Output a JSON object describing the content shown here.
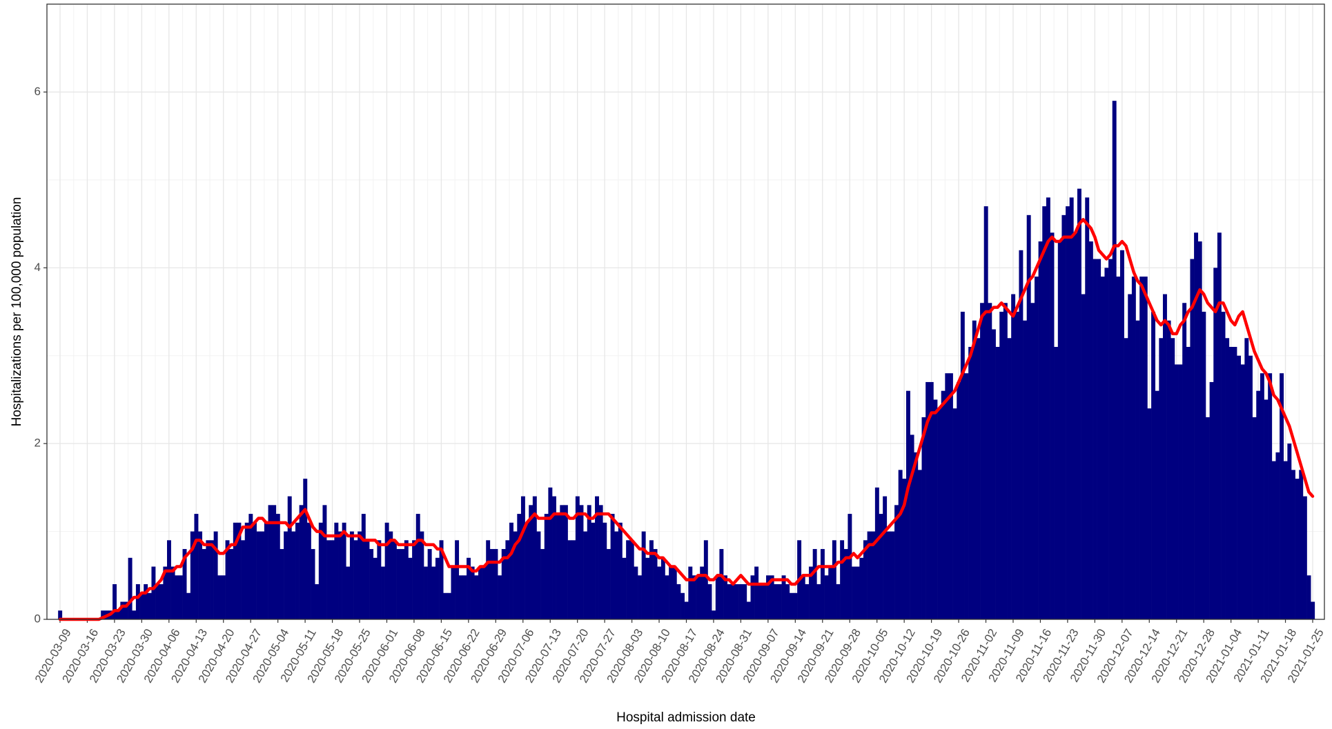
{
  "chart_data": {
    "type": "bar",
    "x_label": "Hospital admission date",
    "y_label": "Hospitalizations per 100,000 population",
    "ylim": [
      0,
      7
    ],
    "yticks": [
      0,
      2,
      4,
      6
    ],
    "minor_yticks": [
      1,
      3,
      5
    ],
    "grid": true,
    "x": [
      "2020-03-09",
      "2020-03-10",
      "2020-03-11",
      "2020-03-12",
      "2020-03-13",
      "2020-03-14",
      "2020-03-15",
      "2020-03-16",
      "2020-03-17",
      "2020-03-18",
      "2020-03-19",
      "2020-03-20",
      "2020-03-21",
      "2020-03-22",
      "2020-03-23",
      "2020-03-24",
      "2020-03-25",
      "2020-03-26",
      "2020-03-27",
      "2020-03-28",
      "2020-03-29",
      "2020-03-30",
      "2020-03-31",
      "2020-04-01",
      "2020-04-02",
      "2020-04-03",
      "2020-04-04",
      "2020-04-05",
      "2020-04-06",
      "2020-04-07",
      "2020-04-08",
      "2020-04-09",
      "2020-04-10",
      "2020-04-11",
      "2020-04-12",
      "2020-04-13",
      "2020-04-14",
      "2020-04-15",
      "2020-04-16",
      "2020-04-17",
      "2020-04-18",
      "2020-04-19",
      "2020-04-20",
      "2020-04-21",
      "2020-04-22",
      "2020-04-23",
      "2020-04-24",
      "2020-04-25",
      "2020-04-26",
      "2020-04-27",
      "2020-04-28",
      "2020-04-29",
      "2020-04-30",
      "2020-05-01",
      "2020-05-02",
      "2020-05-03",
      "2020-05-04",
      "2020-05-05",
      "2020-05-06",
      "2020-05-07",
      "2020-05-08",
      "2020-05-09",
      "2020-05-10",
      "2020-05-11",
      "2020-05-12",
      "2020-05-13",
      "2020-05-14",
      "2020-05-15",
      "2020-05-16",
      "2020-05-17",
      "2020-05-18",
      "2020-05-19",
      "2020-05-20",
      "2020-05-21",
      "2020-05-22",
      "2020-05-23",
      "2020-05-24",
      "2020-05-25",
      "2020-05-26",
      "2020-05-27",
      "2020-05-28",
      "2020-05-29",
      "2020-05-30",
      "2020-05-31",
      "2020-06-01",
      "2020-06-02",
      "2020-06-03",
      "2020-06-04",
      "2020-06-05",
      "2020-06-06",
      "2020-06-07",
      "2020-06-08",
      "2020-06-09",
      "2020-06-10",
      "2020-06-11",
      "2020-06-12",
      "2020-06-13",
      "2020-06-14",
      "2020-06-15",
      "2020-06-16",
      "2020-06-17",
      "2020-06-18",
      "2020-06-19",
      "2020-06-20",
      "2020-06-21",
      "2020-06-22",
      "2020-06-23",
      "2020-06-24",
      "2020-06-25",
      "2020-06-26",
      "2020-06-27",
      "2020-06-28",
      "2020-06-29",
      "2020-06-30",
      "2020-07-01",
      "2020-07-02",
      "2020-07-03",
      "2020-07-04",
      "2020-07-05",
      "2020-07-06",
      "2020-07-07",
      "2020-07-08",
      "2020-07-09",
      "2020-07-10",
      "2020-07-11",
      "2020-07-12",
      "2020-07-13",
      "2020-07-14",
      "2020-07-15",
      "2020-07-16",
      "2020-07-17",
      "2020-07-18",
      "2020-07-19",
      "2020-07-20",
      "2020-07-21",
      "2020-07-22",
      "2020-07-23",
      "2020-07-24",
      "2020-07-25",
      "2020-07-26",
      "2020-07-27",
      "2020-07-28",
      "2020-07-29",
      "2020-07-30",
      "2020-07-31",
      "2020-08-01",
      "2020-08-02",
      "2020-08-03",
      "2020-08-04",
      "2020-08-05",
      "2020-08-06",
      "2020-08-07",
      "2020-08-08",
      "2020-08-09",
      "2020-08-10",
      "2020-08-11",
      "2020-08-12",
      "2020-08-13",
      "2020-08-14",
      "2020-08-15",
      "2020-08-16",
      "2020-08-17",
      "2020-08-18",
      "2020-08-19",
      "2020-08-20",
      "2020-08-21",
      "2020-08-22",
      "2020-08-23",
      "2020-08-24",
      "2020-08-25",
      "2020-08-26",
      "2020-08-27",
      "2020-08-28",
      "2020-08-29",
      "2020-08-30",
      "2020-08-31",
      "2020-09-01",
      "2020-09-02",
      "2020-09-03",
      "2020-09-04",
      "2020-09-05",
      "2020-09-06",
      "2020-09-07",
      "2020-09-08",
      "2020-09-09",
      "2020-09-10",
      "2020-09-11",
      "2020-09-12",
      "2020-09-13",
      "2020-09-14",
      "2020-09-15",
      "2020-09-16",
      "2020-09-17",
      "2020-09-18",
      "2020-09-19",
      "2020-09-20",
      "2020-09-21",
      "2020-09-22",
      "2020-09-23",
      "2020-09-24",
      "2020-09-25",
      "2020-09-26",
      "2020-09-27",
      "2020-09-28",
      "2020-09-29",
      "2020-09-30",
      "2020-10-01",
      "2020-10-02",
      "2020-10-03",
      "2020-10-04",
      "2020-10-05",
      "2020-10-06",
      "2020-10-07",
      "2020-10-08",
      "2020-10-09",
      "2020-10-10",
      "2020-10-11",
      "2020-10-12",
      "2020-10-13",
      "2020-10-14",
      "2020-10-15",
      "2020-10-16",
      "2020-10-17",
      "2020-10-18",
      "2020-10-19",
      "2020-10-20",
      "2020-10-21",
      "2020-10-22",
      "2020-10-23",
      "2020-10-24",
      "2020-10-25",
      "2020-10-26",
      "2020-10-27",
      "2020-10-28",
      "2020-10-29",
      "2020-10-30",
      "2020-10-31",
      "2020-11-01",
      "2020-11-02",
      "2020-11-03",
      "2020-11-04",
      "2020-11-05",
      "2020-11-06",
      "2020-11-07",
      "2020-11-08",
      "2020-11-09",
      "2020-11-10",
      "2020-11-11",
      "2020-11-12",
      "2020-11-13",
      "2020-11-14",
      "2020-11-15",
      "2020-11-16",
      "2020-11-17",
      "2020-11-18",
      "2020-11-19",
      "2020-11-20",
      "2020-11-21",
      "2020-11-22",
      "2020-11-23",
      "2020-11-24",
      "2020-11-25",
      "2020-11-26",
      "2020-11-27",
      "2020-11-28",
      "2020-11-29",
      "2020-11-30",
      "2020-12-01",
      "2020-12-02",
      "2020-12-03",
      "2020-12-04",
      "2020-12-05",
      "2020-12-06",
      "2020-12-07",
      "2020-12-08",
      "2020-12-09",
      "2020-12-10",
      "2020-12-11",
      "2020-12-12",
      "2020-12-13",
      "2020-12-14",
      "2020-12-15",
      "2020-12-16",
      "2020-12-17",
      "2020-12-18",
      "2020-12-19",
      "2020-12-20",
      "2020-12-21",
      "2020-12-22",
      "2020-12-23",
      "2020-12-24",
      "2020-12-25",
      "2020-12-26",
      "2020-12-27",
      "2020-12-28",
      "2020-12-29",
      "2020-12-30",
      "2020-12-31",
      "2021-01-01",
      "2021-01-02",
      "2021-01-03",
      "2021-01-04",
      "2021-01-05",
      "2021-01-06",
      "2021-01-07",
      "2021-01-08",
      "2021-01-09",
      "2021-01-10",
      "2021-01-11",
      "2021-01-12",
      "2021-01-13",
      "2021-01-14",
      "2021-01-15",
      "2021-01-16",
      "2021-01-17",
      "2021-01-18",
      "2021-01-19",
      "2021-01-20",
      "2021-01-21",
      "2021-01-22",
      "2021-01-23",
      "2021-01-24",
      "2021-01-25"
    ],
    "xticks": [
      "2020-03-09",
      "2020-03-16",
      "2020-03-23",
      "2020-03-30",
      "2020-04-06",
      "2020-04-13",
      "2020-04-20",
      "2020-04-27",
      "2020-05-04",
      "2020-05-11",
      "2020-05-18",
      "2020-05-25",
      "2020-06-01",
      "2020-06-08",
      "2020-06-15",
      "2020-06-22",
      "2020-06-29",
      "2020-07-06",
      "2020-07-13",
      "2020-07-20",
      "2020-07-27",
      "2020-08-03",
      "2020-08-10",
      "2020-08-17",
      "2020-08-24",
      "2020-08-31",
      "2020-09-07",
      "2020-09-14",
      "2020-09-21",
      "2020-09-28",
      "2020-10-05",
      "2020-10-12",
      "2020-10-19",
      "2020-10-26",
      "2020-11-02",
      "2020-11-09",
      "2020-11-16",
      "2020-11-23",
      "2020-11-30",
      "2020-12-07",
      "2020-12-14",
      "2020-12-21",
      "2020-12-28",
      "2021-01-04",
      "2021-01-11",
      "2021-01-18",
      "2021-01-25"
    ],
    "series": [
      {
        "type": "bar",
        "color": "#000080",
        "values": [
          0.1,
          0,
          0,
          0,
          0,
          0,
          0,
          0,
          0,
          0,
          0,
          0.1,
          0.1,
          0.1,
          0.4,
          0.1,
          0.2,
          0.2,
          0.7,
          0.1,
          0.4,
          0.3,
          0.4,
          0.3,
          0.6,
          0.4,
          0.4,
          0.6,
          0.9,
          0.6,
          0.5,
          0.5,
          0.8,
          0.3,
          1.0,
          1.2,
          1.0,
          0.8,
          0.9,
          0.9,
          1.0,
          0.5,
          0.5,
          0.9,
          0.8,
          1.1,
          1.1,
          0.9,
          1.1,
          1.2,
          1.1,
          1.0,
          1.0,
          1.1,
          1.3,
          1.3,
          1.2,
          0.8,
          1.0,
          1.4,
          1.0,
          1.1,
          1.3,
          1.6,
          1.1,
          0.8,
          0.4,
          1.1,
          1.3,
          0.9,
          0.9,
          1.1,
          1.0,
          1.1,
          0.6,
          1.0,
          0.9,
          1.0,
          1.2,
          0.9,
          0.8,
          0.7,
          0.9,
          0.6,
          1.1,
          1.0,
          0.9,
          0.8,
          0.8,
          0.9,
          0.7,
          0.9,
          1.2,
          1.0,
          0.6,
          0.8,
          0.6,
          0.7,
          0.9,
          0.3,
          0.3,
          0.6,
          0.9,
          0.5,
          0.5,
          0.7,
          0.6,
          0.5,
          0.6,
          0.6,
          0.9,
          0.8,
          0.8,
          0.5,
          0.8,
          0.9,
          1.1,
          1.0,
          1.2,
          1.4,
          1.1,
          1.3,
          1.4,
          1.0,
          0.8,
          1.2,
          1.5,
          1.4,
          1.2,
          1.3,
          1.3,
          0.9,
          0.9,
          1.4,
          1.3,
          1.0,
          1.3,
          1.1,
          1.4,
          1.3,
          1.1,
          0.8,
          1.2,
          1.0,
          1.1,
          0.7,
          0.9,
          0.9,
          0.6,
          0.5,
          1.0,
          0.7,
          0.9,
          0.8,
          0.6,
          0.7,
          0.5,
          0.6,
          0.6,
          0.4,
          0.3,
          0.2,
          0.6,
          0.5,
          0.5,
          0.6,
          0.9,
          0.4,
          0.1,
          0.5,
          0.8,
          0.5,
          0.4,
          0.4,
          0.4,
          0.4,
          0.4,
          0.2,
          0.5,
          0.6,
          0.4,
          0.4,
          0.5,
          0.5,
          0.4,
          0.4,
          0.5,
          0.4,
          0.3,
          0.3,
          0.9,
          0.5,
          0.4,
          0.6,
          0.8,
          0.4,
          0.8,
          0.5,
          0.6,
          0.9,
          0.4,
          0.9,
          0.8,
          1.2,
          0.6,
          0.6,
          0.7,
          0.9,
          1.0,
          1.0,
          1.5,
          1.2,
          1.4,
          1.0,
          1.0,
          1.3,
          1.7,
          1.6,
          2.6,
          2.1,
          1.9,
          1.7,
          2.3,
          2.7,
          2.7,
          2.5,
          2.4,
          2.6,
          2.8,
          2.8,
          2.4,
          2.7,
          3.5,
          2.8,
          3.1,
          3.4,
          3.2,
          3.6,
          4.7,
          3.6,
          3.3,
          3.1,
          3.5,
          3.6,
          3.2,
          3.7,
          3.5,
          4.2,
          3.4,
          4.6,
          3.6,
          3.9,
          4.3,
          4.7,
          4.8,
          4.4,
          3.1,
          4.3,
          4.6,
          4.7,
          4.8,
          4.4,
          4.9,
          3.7,
          4.8,
          4.3,
          4.1,
          4.1,
          3.9,
          4.0,
          4.1,
          5.9,
          3.9,
          4.2,
          3.2,
          3.7,
          3.9,
          3.4,
          3.9,
          3.9,
          2.4,
          3.5,
          2.6,
          3.2,
          3.7,
          3.4,
          3.2,
          2.9,
          2.9,
          3.6,
          3.1,
          4.1,
          4.4,
          4.3,
          3.5,
          2.3,
          2.7,
          4.0,
          4.4,
          3.5,
          3.2,
          3.1,
          3.1,
          3.0,
          2.9,
          3.2,
          3.0,
          2.3,
          2.6,
          2.8,
          2.5,
          2.8,
          1.8,
          1.9,
          2.8,
          1.8,
          2.0,
          1.7,
          1.6,
          1.7,
          1.4,
          0.5,
          0.2
        ]
      },
      {
        "type": "line",
        "color": "#ff0000",
        "values": [
          0,
          0,
          0,
          0,
          0,
          0,
          0,
          0,
          0,
          0,
          0,
          0.02,
          0.04,
          0.06,
          0.1,
          0.1,
          0.15,
          0.15,
          0.2,
          0.25,
          0.25,
          0.3,
          0.3,
          0.35,
          0.35,
          0.4,
          0.45,
          0.55,
          0.55,
          0.55,
          0.6,
          0.6,
          0.7,
          0.75,
          0.8,
          0.9,
          0.9,
          0.85,
          0.85,
          0.85,
          0.8,
          0.75,
          0.75,
          0.8,
          0.85,
          0.85,
          0.95,
          1.05,
          1.05,
          1.05,
          1.1,
          1.15,
          1.15,
          1.1,
          1.1,
          1.1,
          1.1,
          1.1,
          1.1,
          1.05,
          1.1,
          1.15,
          1.2,
          1.25,
          1.15,
          1.05,
          1.0,
          1.0,
          0.95,
          0.95,
          0.95,
          0.95,
          0.95,
          1.0,
          0.95,
          0.95,
          0.95,
          0.95,
          0.9,
          0.9,
          0.9,
          0.9,
          0.85,
          0.85,
          0.85,
          0.9,
          0.9,
          0.85,
          0.85,
          0.85,
          0.85,
          0.85,
          0.9,
          0.9,
          0.85,
          0.85,
          0.85,
          0.8,
          0.8,
          0.7,
          0.6,
          0.6,
          0.6,
          0.6,
          0.6,
          0.6,
          0.55,
          0.55,
          0.6,
          0.6,
          0.65,
          0.65,
          0.65,
          0.65,
          0.7,
          0.7,
          0.75,
          0.85,
          0.9,
          1.0,
          1.1,
          1.15,
          1.2,
          1.15,
          1.15,
          1.15,
          1.15,
          1.2,
          1.2,
          1.2,
          1.2,
          1.15,
          1.15,
          1.2,
          1.2,
          1.2,
          1.15,
          1.15,
          1.2,
          1.2,
          1.2,
          1.2,
          1.15,
          1.1,
          1.05,
          1.0,
          0.95,
          0.9,
          0.85,
          0.8,
          0.8,
          0.75,
          0.75,
          0.75,
          0.7,
          0.7,
          0.65,
          0.6,
          0.6,
          0.55,
          0.5,
          0.45,
          0.45,
          0.45,
          0.5,
          0.5,
          0.5,
          0.45,
          0.45,
          0.5,
          0.5,
          0.45,
          0.45,
          0.4,
          0.45,
          0.5,
          0.45,
          0.4,
          0.4,
          0.4,
          0.4,
          0.4,
          0.4,
          0.45,
          0.45,
          0.45,
          0.45,
          0.45,
          0.4,
          0.4,
          0.45,
          0.5,
          0.5,
          0.5,
          0.55,
          0.6,
          0.6,
          0.6,
          0.6,
          0.6,
          0.65,
          0.65,
          0.7,
          0.7,
          0.75,
          0.7,
          0.75,
          0.8,
          0.85,
          0.85,
          0.9,
          0.95,
          1.0,
          1.05,
          1.1,
          1.15,
          1.2,
          1.3,
          1.5,
          1.65,
          1.8,
          1.95,
          2.1,
          2.25,
          2.35,
          2.35,
          2.4,
          2.45,
          2.5,
          2.55,
          2.6,
          2.7,
          2.8,
          2.9,
          3.0,
          3.15,
          3.3,
          3.45,
          3.5,
          3.5,
          3.55,
          3.55,
          3.6,
          3.55,
          3.5,
          3.45,
          3.55,
          3.65,
          3.75,
          3.85,
          3.9,
          4.0,
          4.1,
          4.2,
          4.3,
          4.35,
          4.3,
          4.3,
          4.35,
          4.35,
          4.35,
          4.4,
          4.5,
          4.55,
          4.5,
          4.45,
          4.35,
          4.2,
          4.15,
          4.1,
          4.15,
          4.25,
          4.25,
          4.3,
          4.25,
          4.1,
          3.95,
          3.85,
          3.8,
          3.7,
          3.6,
          3.5,
          3.4,
          3.35,
          3.4,
          3.35,
          3.25,
          3.25,
          3.35,
          3.4,
          3.5,
          3.55,
          3.65,
          3.75,
          3.7,
          3.6,
          3.55,
          3.5,
          3.6,
          3.6,
          3.5,
          3.4,
          3.35,
          3.45,
          3.5,
          3.35,
          3.2,
          3.05,
          2.95,
          2.85,
          2.8,
          2.7,
          2.55,
          2.5,
          2.4,
          2.3,
          2.2,
          2.05,
          1.9,
          1.75,
          1.6,
          1.45,
          1.4
        ]
      }
    ]
  }
}
